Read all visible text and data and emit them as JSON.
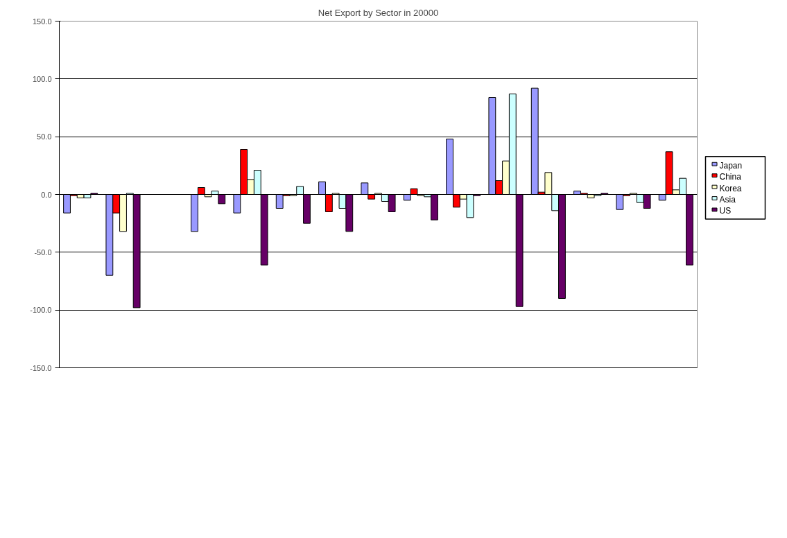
{
  "chart_data": {
    "type": "bar",
    "title": "Net Export by Sector in 20000",
    "categories": [
      null,
      null,
      null,
      null,
      null,
      null,
      null,
      null,
      null,
      null,
      null,
      null,
      null,
      null,
      null
    ],
    "series": [
      {
        "name": "Japan",
        "color": "#9999ff",
        "values": [
          -16,
          -70,
          null,
          -32,
          -16,
          -12,
          11,
          10,
          -5,
          48,
          84,
          92,
          3,
          -13,
          -5
        ]
      },
      {
        "name": "China",
        "color": "#ff0000",
        "values": [
          -1,
          -16,
          null,
          6,
          39,
          -1,
          -15,
          -4,
          5,
          -11,
          12,
          2,
          1,
          -1,
          37
        ]
      },
      {
        "name": "Korea",
        "color": "#ffffcc",
        "values": [
          -3,
          -32,
          null,
          -2,
          13,
          -1,
          1,
          1,
          -1,
          -4,
          29,
          19,
          -3,
          1,
          4
        ]
      },
      {
        "name": "Asia",
        "color": "#ccffff",
        "values": [
          -3,
          1,
          null,
          3,
          21,
          7,
          -12,
          -6,
          -2,
          -20,
          87,
          -14,
          -1,
          -7,
          14
        ]
      },
      {
        "name": "US",
        "color": "#660066",
        "values": [
          1,
          -98,
          null,
          -8,
          -61,
          -25,
          -32,
          -15,
          -22,
          -1,
          -97,
          -90,
          1,
          -12,
          -61
        ]
      }
    ],
    "ylim": [
      -150,
      150
    ],
    "yticks": [
      {
        "value": -150,
        "label": "-150.0"
      },
      {
        "value": -100,
        "label": "-100.0"
      },
      {
        "value": -50,
        "label": "-50.0"
      },
      {
        "value": 0,
        "label": "0.0"
      },
      {
        "value": 50,
        "label": "50.0"
      },
      {
        "value": 100,
        "label": "100.0"
      },
      {
        "value": 150,
        "label": "150.0"
      }
    ],
    "grid": "y",
    "legend": "right"
  }
}
